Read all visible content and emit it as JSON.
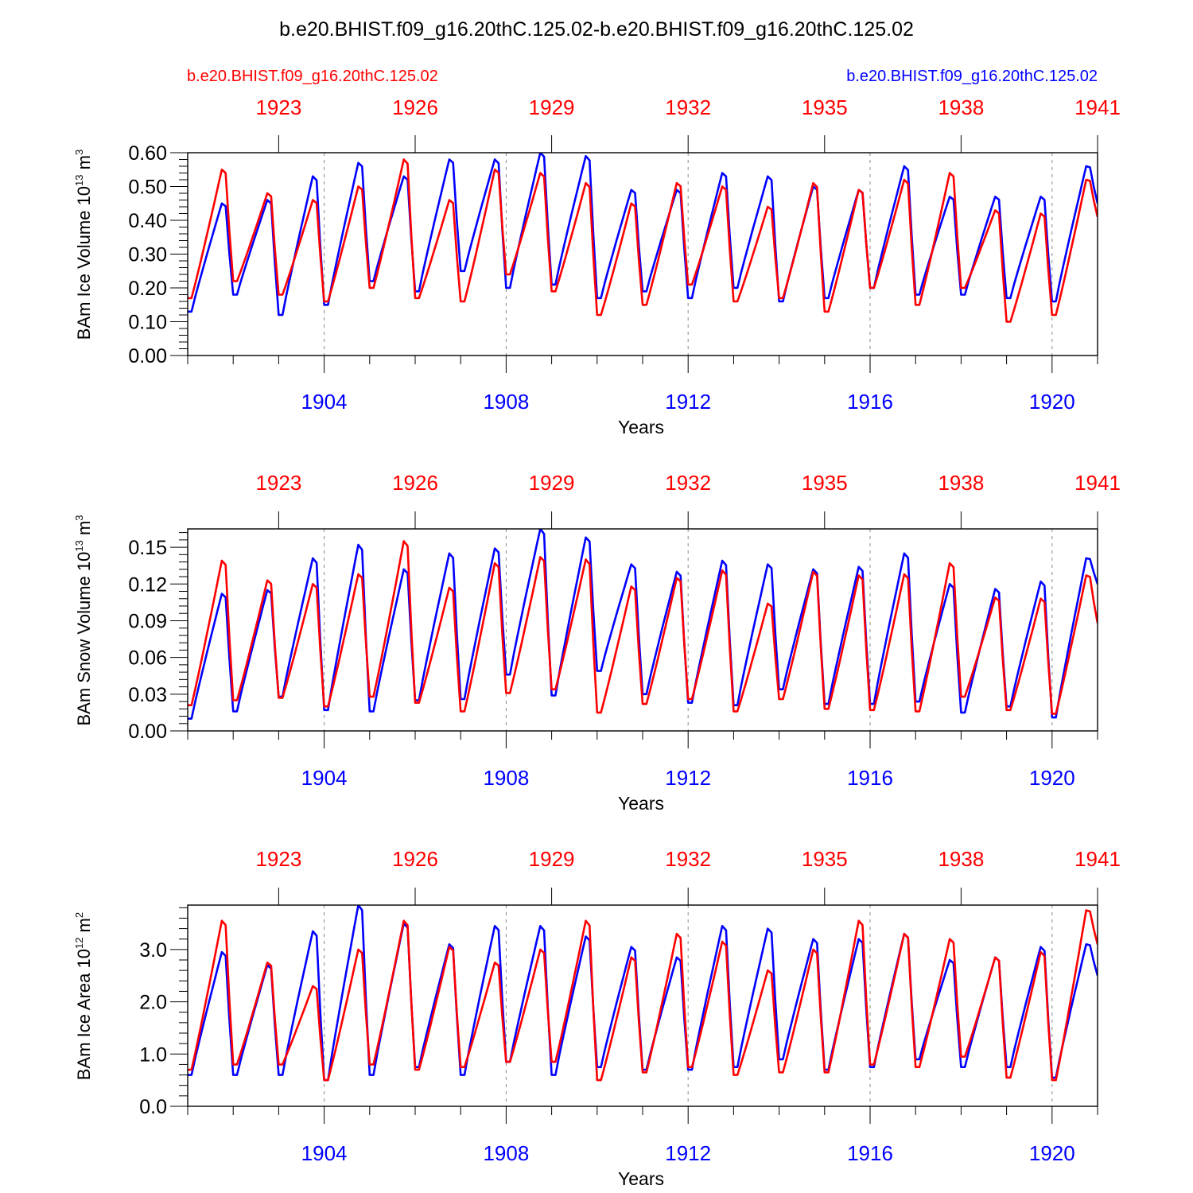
{
  "title": "b.e20.BHIST.f09_g16.20thC.125.02-b.e20.BHIST.f09_g16.20thC.125.02",
  "legend": {
    "left_label": "b.e20.BHIST.f09_g16.20thC.125.02",
    "right_label": "b.e20.BHIST.f09_g16.20thC.125.02"
  },
  "colors": {
    "red_case": "#ff0000",
    "blue_case": "#0000ff",
    "axis": "#000000",
    "grid": "#888888"
  },
  "chart_data": [
    {
      "type": "line",
      "ylabel": "BAm Ice Volume 10",
      "ylabel_exp": "13",
      "ylabel_unit": "m",
      "ylabel_unit_exp": "3",
      "xlabel": "Years",
      "ylim": [
        0,
        0.6
      ],
      "yticks": [
        0,
        0.1,
        0.2,
        0.3,
        0.4,
        0.5,
        0.6
      ],
      "ytick_labels": [
        "0.00",
        "0.10",
        "0.20",
        "0.30",
        "0.40",
        "0.50",
        "0.60"
      ],
      "x_bottom_years": [
        1904,
        1908,
        1912,
        1916,
        1920
      ],
      "x_bottom_labels": [
        "1904",
        "1908",
        "1912",
        "1916",
        "1920"
      ],
      "x_top_years": [
        1923,
        1926,
        1929,
        1932,
        1935,
        1938,
        1941
      ],
      "x_top_labels": [
        "1923",
        "1926",
        "1929",
        "1932",
        "1935",
        "1938",
        "1941"
      ],
      "x_range": [
        1901,
        1921
      ],
      "x_top_range": [
        1921,
        1941
      ],
      "series": [
        {
          "name": "b.e20.BHIST.f09_g16.20thC.125.02 (blue)",
          "color": "blue",
          "peaks": [
            0.45,
            0.46,
            0.53,
            0.57,
            0.53,
            0.58,
            0.58,
            0.6,
            0.59,
            0.49,
            0.49,
            0.54,
            0.53,
            0.5,
            0.49,
            0.56,
            0.47,
            0.47,
            0.47,
            0.56
          ],
          "troughs": [
            0.13,
            0.18,
            0.12,
            0.15,
            0.22,
            0.19,
            0.25,
            0.2,
            0.21,
            0.17,
            0.19,
            0.17,
            0.2,
            0.16,
            0.17,
            0.2,
            0.18,
            0.18,
            0.17,
            0.16,
            0.45
          ]
        },
        {
          "name": "b.e20.BHIST.f09_g16.20thC.125.02 (red)",
          "color": "red",
          "peaks": [
            0.55,
            0.48,
            0.46,
            0.5,
            0.58,
            0.46,
            0.55,
            0.54,
            0.51,
            0.45,
            0.51,
            0.5,
            0.44,
            0.51,
            0.49,
            0.52,
            0.54,
            0.43,
            0.42,
            0.52
          ],
          "troughs": [
            0.17,
            0.22,
            0.18,
            0.16,
            0.2,
            0.17,
            0.16,
            0.24,
            0.19,
            0.12,
            0.15,
            0.21,
            0.16,
            0.17,
            0.13,
            0.2,
            0.15,
            0.2,
            0.1,
            0.12,
            0.41
          ]
        }
      ]
    },
    {
      "type": "line",
      "ylabel": "BAm Snow Volume 10",
      "ylabel_exp": "13",
      "ylabel_unit": "m",
      "ylabel_unit_exp": "3",
      "xlabel": "Years",
      "ylim": [
        0,
        0.165
      ],
      "yticks": [
        0,
        0.03,
        0.06,
        0.09,
        0.12,
        0.15
      ],
      "ytick_labels": [
        "0.00",
        "0.03",
        "0.06",
        "0.09",
        "0.12",
        "0.15"
      ],
      "x_bottom_years": [
        1904,
        1908,
        1912,
        1916,
        1920
      ],
      "x_bottom_labels": [
        "1904",
        "1908",
        "1912",
        "1916",
        "1920"
      ],
      "x_top_years": [
        1923,
        1926,
        1929,
        1932,
        1935,
        1938,
        1941
      ],
      "x_top_labels": [
        "1923",
        "1926",
        "1929",
        "1932",
        "1935",
        "1938",
        "1941"
      ],
      "x_range": [
        1901,
        1921
      ],
      "x_top_range": [
        1921,
        1941
      ],
      "series": [
        {
          "name": "b.e20.BHIST.f09_g16.20thC.125.02 (blue)",
          "color": "blue",
          "peaks": [
            0.112,
            0.115,
            0.141,
            0.152,
            0.132,
            0.145,
            0.149,
            0.165,
            0.158,
            0.136,
            0.13,
            0.139,
            0.136,
            0.132,
            0.134,
            0.145,
            0.12,
            0.116,
            0.122,
            0.141
          ],
          "troughs": [
            0.01,
            0.016,
            0.028,
            0.017,
            0.016,
            0.025,
            0.026,
            0.046,
            0.029,
            0.049,
            0.03,
            0.023,
            0.021,
            0.034,
            0.022,
            0.022,
            0.024,
            0.015,
            0.02,
            0.011,
            0.12
          ]
        },
        {
          "name": "b.e20.BHIST.f09_g16.20thC.125.02 (red)",
          "color": "red",
          "peaks": [
            0.139,
            0.123,
            0.12,
            0.128,
            0.155,
            0.117,
            0.137,
            0.142,
            0.14,
            0.118,
            0.125,
            0.131,
            0.104,
            0.13,
            0.127,
            0.128,
            0.137,
            0.109,
            0.108,
            0.127
          ],
          "troughs": [
            0.021,
            0.025,
            0.027,
            0.02,
            0.028,
            0.023,
            0.016,
            0.031,
            0.034,
            0.015,
            0.022,
            0.026,
            0.016,
            0.026,
            0.018,
            0.017,
            0.016,
            0.028,
            0.017,
            0.014,
            0.088
          ]
        }
      ]
    },
    {
      "type": "line",
      "ylabel": "BAm Ice Area 10",
      "ylabel_exp": "12",
      "ylabel_unit": "m",
      "ylabel_unit_exp": "2",
      "xlabel": "Years",
      "ylim": [
        0,
        3.85
      ],
      "yticks": [
        0,
        1,
        2,
        3
      ],
      "ytick_labels": [
        "0.0",
        "1.0",
        "2.0",
        "3.0"
      ],
      "x_bottom_years": [
        1904,
        1908,
        1912,
        1916,
        1920
      ],
      "x_bottom_labels": [
        "1904",
        "1908",
        "1912",
        "1916",
        "1920"
      ],
      "x_top_years": [
        1923,
        1926,
        1929,
        1932,
        1935,
        1938,
        1941
      ],
      "x_top_labels": [
        "1923",
        "1926",
        "1929",
        "1932",
        "1935",
        "1938",
        "1941"
      ],
      "x_range": [
        1901,
        1921
      ],
      "x_top_range": [
        1921,
        1941
      ],
      "series": [
        {
          "name": "b.e20.BHIST.f09_g16.20thC.125.02 (blue)",
          "color": "blue",
          "peaks": [
            2.95,
            2.7,
            3.35,
            3.85,
            3.5,
            3.1,
            3.45,
            3.45,
            3.25,
            3.05,
            2.85,
            3.45,
            3.4,
            3.2,
            3.2,
            3.3,
            2.8,
            2.85,
            3.05,
            3.1
          ],
          "troughs": [
            0.6,
            0.6,
            0.6,
            0.5,
            0.6,
            0.75,
            0.6,
            0.85,
            0.6,
            0.75,
            0.7,
            0.7,
            0.75,
            0.9,
            0.7,
            0.75,
            0.9,
            0.75,
            0.75,
            0.55,
            2.5
          ]
        },
        {
          "name": "b.e20.BHIST.f09_g16.20thC.125.02 (red)",
          "color": "red",
          "peaks": [
            3.55,
            2.75,
            2.3,
            3.0,
            3.55,
            3.05,
            2.75,
            3.0,
            3.55,
            2.85,
            3.3,
            3.15,
            2.6,
            3.0,
            3.55,
            3.3,
            3.2,
            2.85,
            2.95,
            3.75
          ],
          "troughs": [
            0.7,
            0.8,
            0.8,
            0.5,
            0.8,
            0.7,
            0.75,
            0.85,
            0.85,
            0.5,
            0.65,
            0.75,
            0.6,
            0.65,
            0.65,
            0.8,
            0.75,
            0.95,
            0.55,
            0.5,
            3.1
          ]
        }
      ]
    }
  ]
}
